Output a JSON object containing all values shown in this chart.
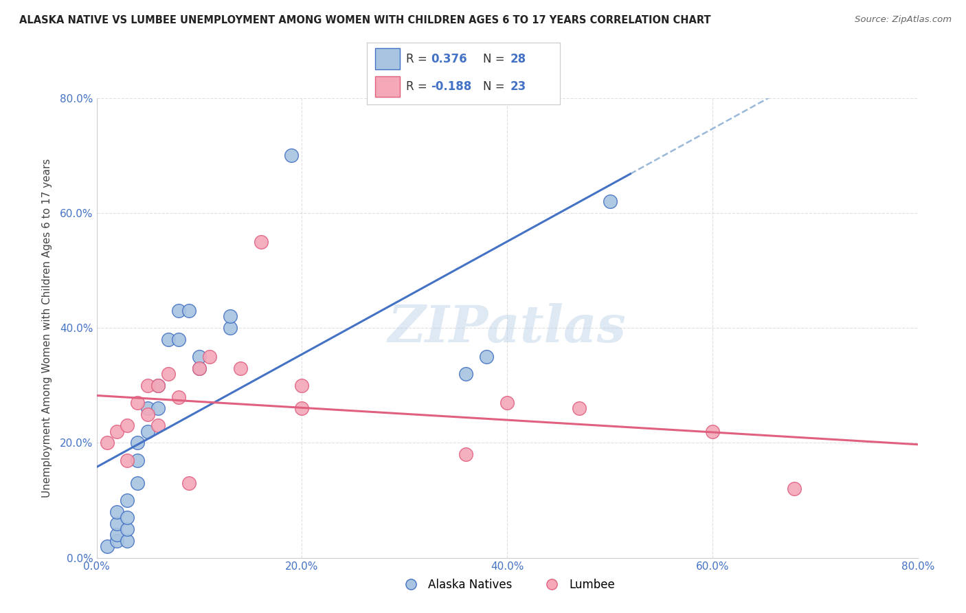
{
  "title": "ALASKA NATIVE VS LUMBEE UNEMPLOYMENT AMONG WOMEN WITH CHILDREN AGES 6 TO 17 YEARS CORRELATION CHART",
  "source": "Source: ZipAtlas.com",
  "ylabel": "Unemployment Among Women with Children Ages 6 to 17 years",
  "xlim": [
    0.0,
    0.8
  ],
  "ylim": [
    0.0,
    0.8
  ],
  "xticks": [
    0.0,
    0.2,
    0.4,
    0.6,
    0.8
  ],
  "yticks": [
    0.0,
    0.2,
    0.4,
    0.6,
    0.8
  ],
  "xticklabels": [
    "0.0%",
    "20.0%",
    "40.0%",
    "60.0%",
    "80.0%"
  ],
  "yticklabels": [
    "0.0%",
    "20.0%",
    "40.0%",
    "60.0%",
    "80.0%"
  ],
  "alaska_color": "#a8c4e0",
  "lumbee_color": "#f4a8b8",
  "alaska_edge_color": "#4472c4",
  "lumbee_edge_color": "#e06080",
  "alaska_line_color": "#4472c4",
  "lumbee_line_color": "#e06080",
  "dashed_line_color": "#9ab8d8",
  "R_alaska": 0.376,
  "N_alaska": 28,
  "R_lumbee": -0.188,
  "N_lumbee": 23,
  "alaska_x": [
    0.01,
    0.02,
    0.02,
    0.02,
    0.02,
    0.03,
    0.03,
    0.03,
    0.03,
    0.04,
    0.04,
    0.04,
    0.05,
    0.05,
    0.06,
    0.06,
    0.07,
    0.08,
    0.08,
    0.09,
    0.1,
    0.1,
    0.13,
    0.13,
    0.19,
    0.36,
    0.38,
    0.5
  ],
  "alaska_y": [
    0.02,
    0.03,
    0.04,
    0.06,
    0.08,
    0.03,
    0.05,
    0.07,
    0.1,
    0.13,
    0.17,
    0.2,
    0.22,
    0.26,
    0.26,
    0.3,
    0.38,
    0.38,
    0.43,
    0.43,
    0.33,
    0.35,
    0.4,
    0.42,
    0.7,
    0.32,
    0.35,
    0.62
  ],
  "lumbee_x": [
    0.01,
    0.02,
    0.03,
    0.03,
    0.04,
    0.05,
    0.05,
    0.06,
    0.06,
    0.07,
    0.08,
    0.09,
    0.1,
    0.11,
    0.14,
    0.16,
    0.2,
    0.2,
    0.36,
    0.4,
    0.47,
    0.6,
    0.68
  ],
  "lumbee_y": [
    0.2,
    0.22,
    0.17,
    0.23,
    0.27,
    0.25,
    0.3,
    0.23,
    0.3,
    0.32,
    0.28,
    0.13,
    0.33,
    0.35,
    0.33,
    0.55,
    0.26,
    0.3,
    0.18,
    0.27,
    0.26,
    0.22,
    0.12
  ],
  "watermark": "ZIPatlas",
  "background_color": "#ffffff",
  "grid_color": "#d8d8d8",
  "legend_box_color": "#f0f0f0",
  "legend_border_color": "#cccccc",
  "text_color_blue": "#4472c4",
  "text_color_dark": "#333333"
}
